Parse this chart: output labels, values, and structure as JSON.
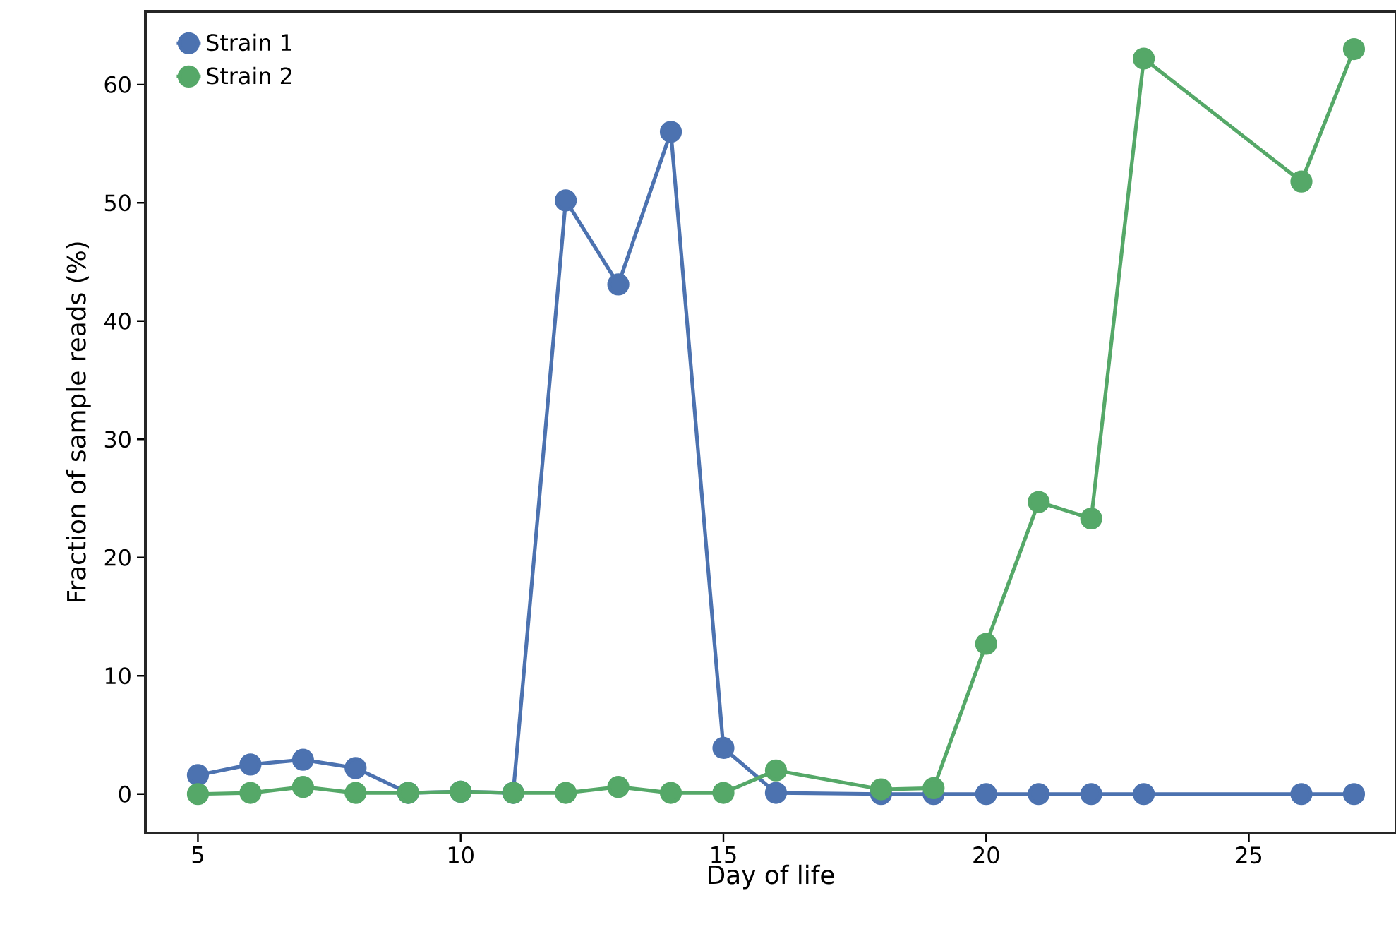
{
  "chart_data": {
    "type": "line",
    "xlabel": "Day of life",
    "ylabel": "Fraction of sample reads (%)",
    "x": [
      5,
      6,
      7,
      8,
      9,
      10,
      11,
      12,
      13,
      14,
      15,
      16,
      18,
      19,
      20,
      21,
      22,
      23,
      26,
      27
    ],
    "series": [
      {
        "name": "Strain 1",
        "color": "#4c72b0",
        "values": [
          1.6,
          2.5,
          2.9,
          2.2,
          0.1,
          0.2,
          0.1,
          50.2,
          43.1,
          56.0,
          3.9,
          0.1,
          0,
          0,
          0,
          0,
          0,
          0,
          0,
          0
        ]
      },
      {
        "name": "Strain 2",
        "color": "#55a868",
        "values": [
          0,
          0.1,
          0.6,
          0.1,
          0.1,
          0.2,
          0.1,
          0.1,
          0.6,
          0.1,
          0.1,
          2.0,
          0.4,
          0.5,
          12.7,
          24.7,
          23.3,
          62.2,
          51.8,
          63.0
        ]
      }
    ],
    "xlim": [
      4,
      27.8
    ],
    "ylim": [
      -3.3,
      66.2
    ],
    "xticks": [
      5,
      10,
      15,
      20,
      25
    ],
    "yticks": [
      0,
      10,
      20,
      30,
      40,
      50,
      60
    ],
    "grid": false,
    "legend": "top left",
    "marker": "circle",
    "line_style": "solid"
  }
}
